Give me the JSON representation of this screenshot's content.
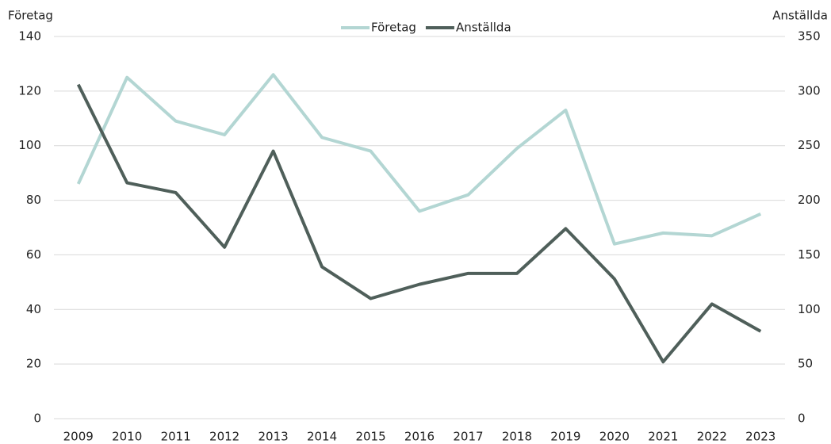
{
  "chart_data": {
    "type": "line",
    "y_label": "Företag",
    "y2_label": "Anställda",
    "categories": [
      "2009",
      "2010",
      "2011",
      "2012",
      "2013",
      "2014",
      "2015",
      "2016",
      "2017",
      "2018",
      "2019",
      "2020",
      "2021",
      "2022",
      "2023"
    ],
    "series": [
      {
        "name": "Företag",
        "color": "#b3d6d3",
        "values": [
          86,
          125,
          109,
          104,
          126,
          103,
          98,
          76,
          82,
          99,
          113,
          64,
          68,
          67,
          75
        ]
      },
      {
        "name": "Anställda",
        "color": "#4f5f5a",
        "axis": "y2",
        "values": [
          306,
          216,
          207,
          157,
          245,
          139,
          110,
          123,
          133,
          133,
          174,
          128,
          52,
          105,
          80
        ]
      }
    ],
    "ylim": [
      0,
      140
    ],
    "yticks": [
      0,
      20,
      40,
      60,
      80,
      100,
      120,
      140
    ],
    "y2lim": [
      0,
      350
    ],
    "y2ticks": [
      0,
      50,
      100,
      150,
      200,
      250,
      300,
      350
    ],
    "grid": true,
    "legend": "top"
  }
}
